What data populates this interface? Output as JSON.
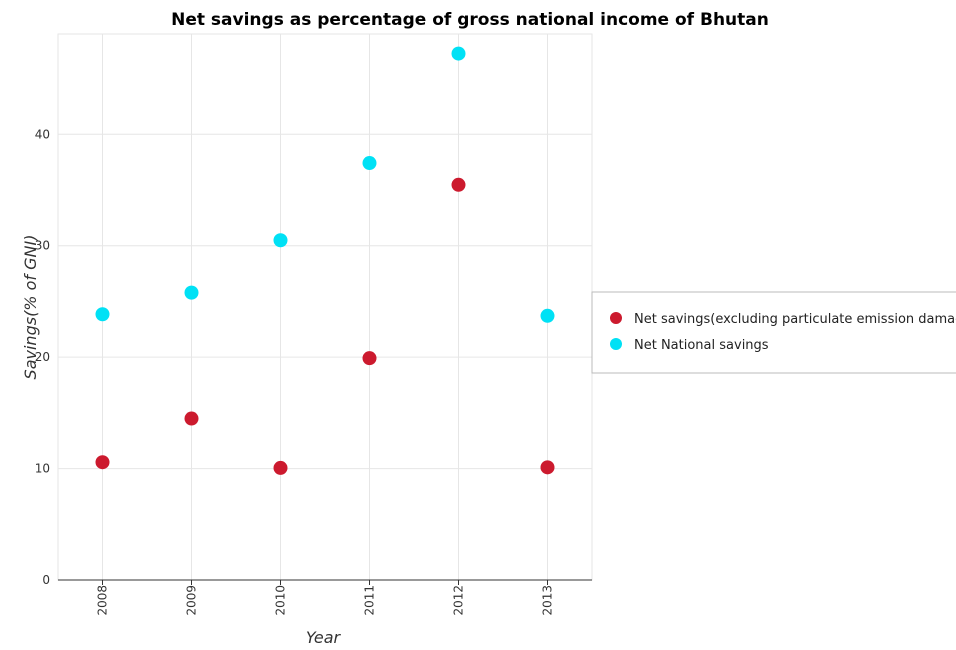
{
  "chart_data": {
    "type": "scatter",
    "title": "Net savings as percentage of gross national income of Bhutan",
    "xlabel": "Year",
    "ylabel": "Savings(% of GNI)",
    "categories": [
      "2008",
      "2009",
      "2010",
      "2011",
      "2012",
      "2013"
    ],
    "ylim": [
      0,
      49
    ],
    "yticks": [
      0,
      10,
      20,
      30,
      40
    ],
    "grid": true,
    "legend_position": "right",
    "series": [
      {
        "name": "Net savings(excluding particulate emission damage)",
        "color": "#cc1a2e",
        "values": [
          10.57,
          14.49,
          10.06,
          19.91,
          35.47,
          10.11
        ]
      },
      {
        "name": "Net National savings",
        "color": "#00e1f5",
        "values": [
          23.85,
          25.79,
          30.49,
          37.42,
          47.24,
          23.71
        ]
      }
    ]
  }
}
